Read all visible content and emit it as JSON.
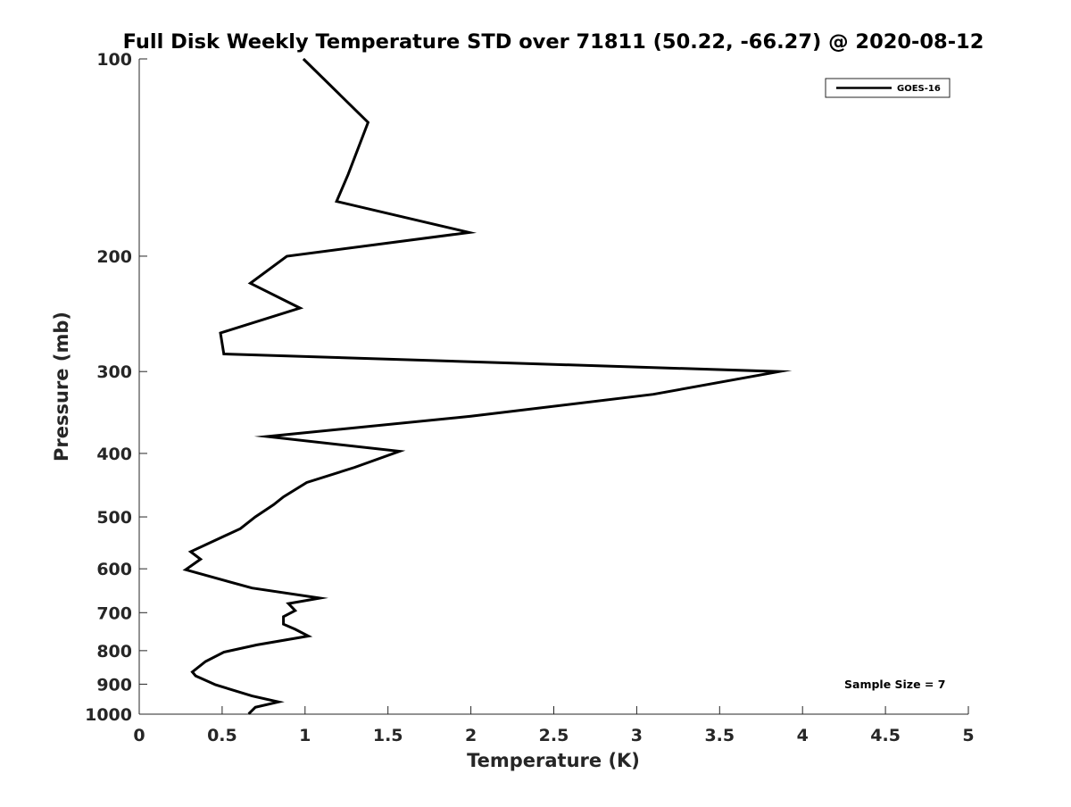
{
  "chart_data": {
    "type": "line",
    "title": "Full Disk Weekly Temperature STD over 71811 (50.22, -66.27) @ 2020-08-12",
    "xlabel": "Temperature (K)",
    "ylabel": "Pressure (mb)",
    "xlim": [
      0,
      5
    ],
    "ylim": [
      100,
      1000
    ],
    "yscale": "log",
    "yreversed": true,
    "grid": false,
    "xticks": [
      0,
      0.5,
      1,
      1.5,
      2,
      2.5,
      3,
      3.5,
      4,
      4.5,
      5
    ],
    "xtick_labels": [
      "0",
      "0.5",
      "1",
      "1.5",
      "2",
      "2.5",
      "3",
      "3.5",
      "4",
      "4.5",
      "5"
    ],
    "yticks": [
      100,
      200,
      300,
      400,
      500,
      600,
      700,
      800,
      900,
      1000
    ],
    "ytick_labels": [
      "100",
      "200",
      "300",
      "400",
      "500",
      "600",
      "700",
      "800",
      "900",
      "1000"
    ],
    "legend": {
      "position": "top-right",
      "entries": [
        "GOES-16"
      ]
    },
    "annotation": "Sample Size = 7",
    "series": [
      {
        "name": "GOES-16",
        "color": "#000000",
        "points": [
          [
            0.99,
            100
          ],
          [
            1.38,
            125
          ],
          [
            1.26,
            150
          ],
          [
            1.19,
            165
          ],
          [
            1.99,
            184
          ],
          [
            0.89,
            200
          ],
          [
            0.67,
            220
          ],
          [
            0.97,
            240
          ],
          [
            0.49,
            262
          ],
          [
            0.51,
            282
          ],
          [
            3.86,
            300
          ],
          [
            3.1,
            325
          ],
          [
            2.0,
            351
          ],
          [
            0.77,
            377
          ],
          [
            1.57,
            397
          ],
          [
            1.3,
            420
          ],
          [
            1.01,
            443
          ],
          [
            0.87,
            466
          ],
          [
            0.81,
            479
          ],
          [
            0.7,
            500
          ],
          [
            0.61,
            521
          ],
          [
            0.31,
            565
          ],
          [
            0.37,
            580
          ],
          [
            0.28,
            602
          ],
          [
            0.68,
            642
          ],
          [
            1.09,
            665
          ],
          [
            0.9,
            678
          ],
          [
            0.94,
            695
          ],
          [
            0.87,
            710
          ],
          [
            0.87,
            729
          ],
          [
            0.94,
            742
          ],
          [
            1.02,
            760
          ],
          [
            0.71,
            784
          ],
          [
            0.51,
            804
          ],
          [
            0.4,
            831
          ],
          [
            0.32,
            862
          ],
          [
            0.34,
            874
          ],
          [
            0.46,
            902
          ],
          [
            0.68,
            938
          ],
          [
            0.84,
            958
          ],
          [
            0.7,
            976
          ],
          [
            0.66,
            999
          ]
        ]
      }
    ]
  }
}
